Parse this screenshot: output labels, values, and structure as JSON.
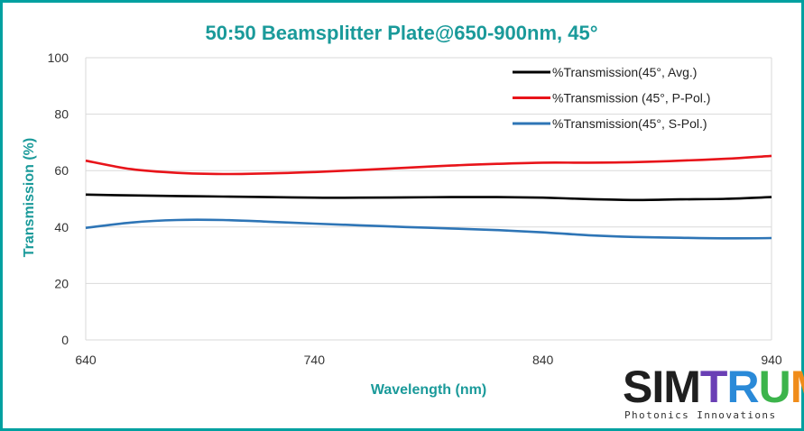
{
  "chart_data": {
    "type": "line",
    "title": "50:50 Beamsplitter Plate@650-900nm, 45°",
    "xlabel": "Wavelength (nm)",
    "ylabel": "Transmission (%)",
    "xlim": [
      640,
      940
    ],
    "ylim": [
      0,
      100
    ],
    "x_ticks": [
      640,
      740,
      840,
      940
    ],
    "y_ticks": [
      0,
      20,
      40,
      60,
      80,
      100
    ],
    "grid": "horizontal",
    "legend_position": "top-right",
    "series": [
      {
        "name": "%Transmission(45°, Avg.)",
        "color": "#000000",
        "x": [
          640,
          660,
          680,
          700,
          720,
          740,
          760,
          780,
          800,
          820,
          840,
          860,
          880,
          900,
          920,
          940
        ],
        "y": [
          51.5,
          51.2,
          51.0,
          50.8,
          50.6,
          50.4,
          50.4,
          50.5,
          50.6,
          50.6,
          50.4,
          49.9,
          49.6,
          49.8,
          50.0,
          50.6
        ]
      },
      {
        "name": "%Transmission (45°, P-Pol.)",
        "color": "#e8141a",
        "x": [
          640,
          660,
          680,
          700,
          720,
          740,
          760,
          780,
          800,
          820,
          840,
          860,
          880,
          900,
          920,
          940
        ],
        "y": [
          63.5,
          60.5,
          59.2,
          58.8,
          59.0,
          59.5,
          60.2,
          61.0,
          61.8,
          62.4,
          62.8,
          62.8,
          63.0,
          63.5,
          64.2,
          65.2
        ]
      },
      {
        "name": "%Transmission(45°, S-Pol.)",
        "color": "#2e75b6",
        "x": [
          640,
          660,
          680,
          700,
          720,
          740,
          760,
          780,
          800,
          820,
          840,
          860,
          880,
          900,
          920,
          940
        ],
        "y": [
          39.7,
          41.6,
          42.5,
          42.5,
          41.9,
          41.2,
          40.6,
          40.0,
          39.5,
          38.9,
          38.1,
          37.1,
          36.5,
          36.2,
          36.0,
          36.1
        ]
      }
    ]
  },
  "logo": {
    "letters": [
      "S",
      "I",
      "M",
      "T",
      "R",
      "U",
      "M"
    ],
    "letter_colors": [
      "#1f1f1f",
      "#1f1f1f",
      "#1f1f1f",
      "#6a3fb5",
      "#2a8ad8",
      "#3cb44b",
      "#f08c1a"
    ],
    "subtitle": "Photonics Innovations"
  },
  "colors": {
    "frame": "#00a0a0",
    "title": "#1a9a9a",
    "grid": "#d9d9d9"
  }
}
